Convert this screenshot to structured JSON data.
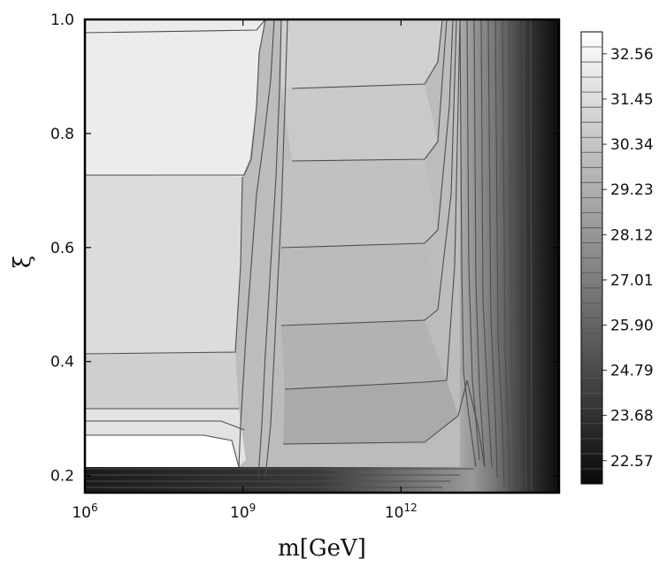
{
  "chart_data": {
    "type": "heatmap",
    "subtype": "filled-contour",
    "xlabel": "m[GeV]",
    "ylabel": "ξ",
    "x_scale": "log",
    "x_ticks": [
      {
        "value": 1000000.0,
        "label": "10^6"
      },
      {
        "value": 1000000000.0,
        "label": "10^9"
      },
      {
        "value": 1000000000000.0,
        "label": "10^12"
      }
    ],
    "y_ticks": [
      {
        "value": 0.2,
        "label": "0.2"
      },
      {
        "value": 0.4,
        "label": "0.4"
      },
      {
        "value": 0.6,
        "label": "0.6"
      },
      {
        "value": 0.8,
        "label": "0.8"
      },
      {
        "value": 1.0,
        "label": "1.0"
      }
    ],
    "xlim": [
      1000000.0,
      1000000000000000.0
    ],
    "ylim": [
      0.17,
      1.0
    ],
    "colorbar": {
      "labels": [
        "32.56",
        "31.45",
        "30.34",
        "29.23",
        "28.12",
        "27.01",
        "25.90",
        "24.79",
        "23.68",
        "22.57"
      ],
      "min": 22.0,
      "max": 33.1,
      "colormap": "grayscale",
      "dark_color": "#0a0a0a",
      "light_color": "#ffffff"
    },
    "regions": [
      {
        "name": "upper-left-plateau",
        "value": 32.8
      },
      {
        "name": "upper-middle-plateau",
        "value": 31.6
      },
      {
        "name": "lower-middle-plateau",
        "value": 30.4
      },
      {
        "name": "high-mass-dropoff",
        "value": 22.3
      },
      {
        "name": "low-xi-band",
        "value": 22.6
      }
    ]
  }
}
